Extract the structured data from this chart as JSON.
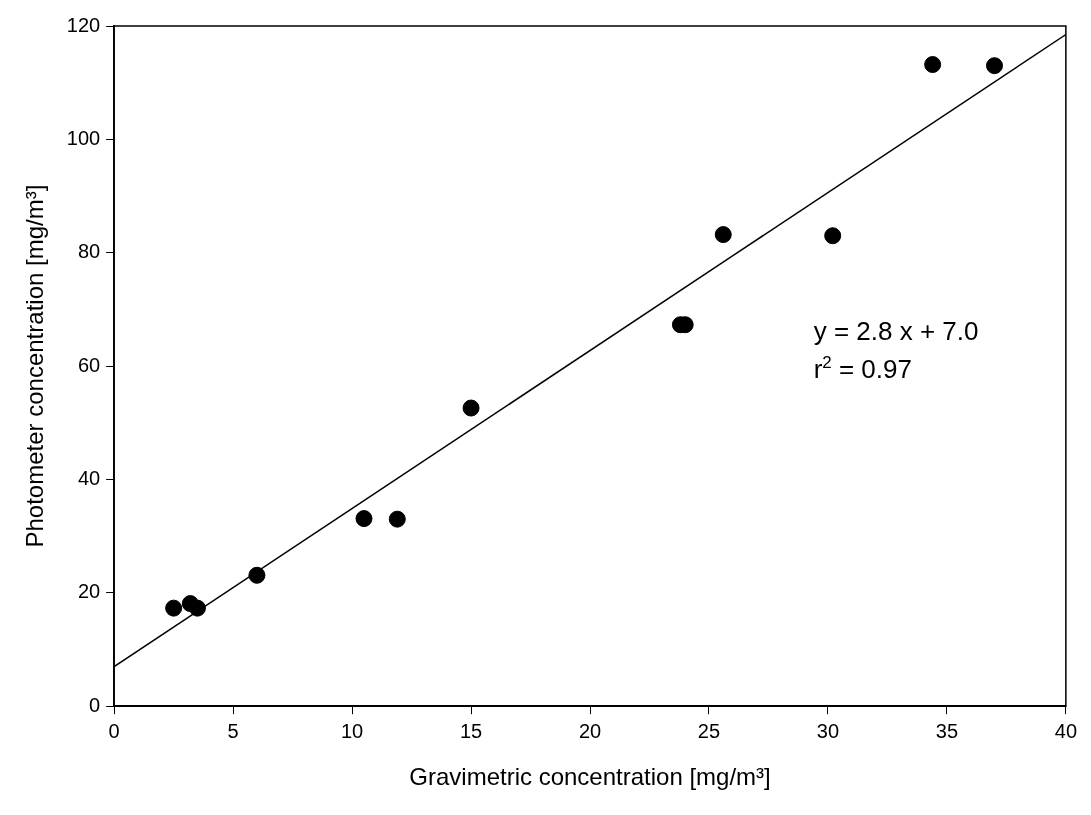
{
  "chart_data": {
    "type": "scatter",
    "xlabel": "Gravimetric concentration [mg/m³]",
    "ylabel": "Photometer concentration [mg/m³]",
    "xlim": [
      0,
      40
    ],
    "xticks": [
      0,
      5,
      10,
      15,
      20,
      25,
      30,
      35,
      40
    ],
    "ylim": [
      0,
      120
    ],
    "yticks": [
      0,
      20,
      40,
      60,
      80,
      100,
      120
    ],
    "grid": false,
    "legend": false,
    "marker": "circle",
    "series": [
      {
        "color": "#000000",
        "x": [
          2.5,
          3.2,
          3.5,
          6.0,
          10.5,
          11.9,
          15.0,
          23.8,
          24.0,
          25.6,
          30.2,
          34.4,
          37.0
        ],
        "values": [
          17.3,
          18.1,
          17.3,
          23.1,
          33.1,
          33.0,
          52.6,
          67.3,
          67.3,
          83.2,
          83.0,
          113.2,
          113.0
        ]
      },
      {
        "type": "line",
        "color": "#000000",
        "marker": "none",
        "line_style": "solid",
        "x": [
          0,
          40
        ],
        "values": [
          7.0,
          118.5
        ]
      }
    ],
    "annotations": [
      "y = 2.8 x + 7.0",
      "r$^{2}$ = 0.97"
    ]
  }
}
